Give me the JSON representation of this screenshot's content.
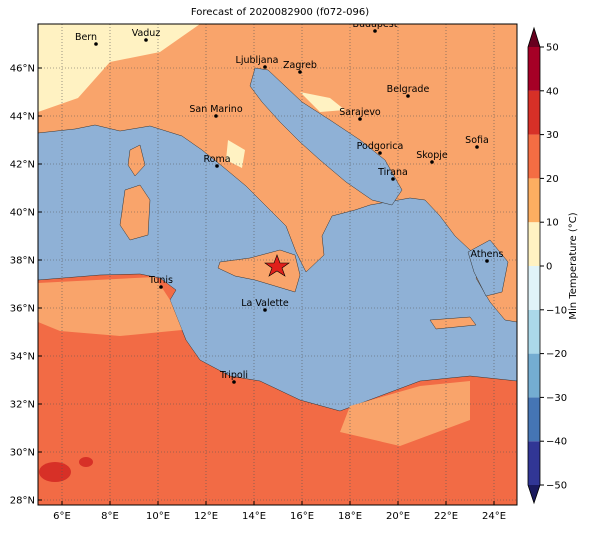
{
  "title": "Forecast of 2020082900 (f072-096)",
  "longitude_ticks": [
    "6°E",
    "8°E",
    "10°E",
    "12°E",
    "14°E",
    "16°E",
    "18°E",
    "20°E",
    "22°E",
    "24°E"
  ],
  "latitude_ticks": [
    "28°N",
    "30°N",
    "32°N",
    "34°N",
    "36°N",
    "38°N",
    "40°N",
    "42°N",
    "44°N",
    "46°N"
  ],
  "cities": [
    {
      "name": "Bern"
    },
    {
      "name": "Vaduz"
    },
    {
      "name": "Budapest"
    },
    {
      "name": "Ljubljana"
    },
    {
      "name": "Zagreb"
    },
    {
      "name": "Belgrade"
    },
    {
      "name": "San Marino"
    },
    {
      "name": "Sarajevo"
    },
    {
      "name": "Sofia"
    },
    {
      "name": "Podgorica"
    },
    {
      "name": "Skopje"
    },
    {
      "name": "Roma"
    },
    {
      "name": "Tirana"
    },
    {
      "name": "Athens"
    },
    {
      "name": "Tunis"
    },
    {
      "name": "La Valette"
    },
    {
      "name": "Tripoli"
    }
  ],
  "colorbar": {
    "label": "Min Temperature (°C)",
    "ticks": [
      {
        "value": -50,
        "label": "−50"
      },
      {
        "value": -40,
        "label": "−40"
      },
      {
        "value": -30,
        "label": "−30"
      },
      {
        "value": -20,
        "label": "−20"
      },
      {
        "value": -10,
        "label": "−10"
      },
      {
        "value": 0,
        "label": "0"
      },
      {
        "value": 10,
        "label": "10"
      },
      {
        "value": 20,
        "label": "20"
      },
      {
        "value": 30,
        "label": "30"
      },
      {
        "value": 40,
        "label": "40"
      },
      {
        "value": 50,
        "label": "50"
      }
    ]
  }
}
